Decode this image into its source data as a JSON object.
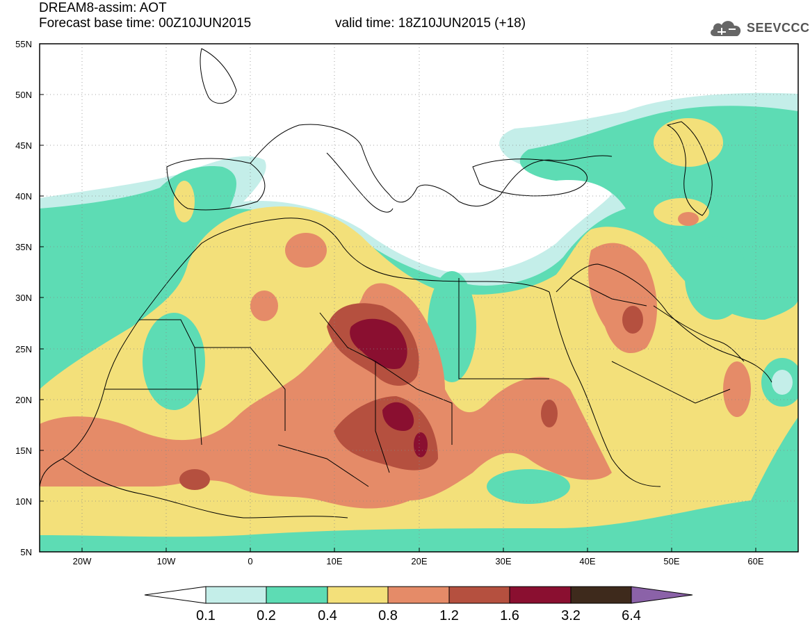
{
  "header": {
    "model_title": "DREAM8-assim: AOT",
    "base_time": "Forecast base time: 00Z10JUN2015",
    "valid_time": "valid time: 18Z10JUN2015 (+18)"
  },
  "logo": {
    "text": "SEEVCCC",
    "icon": "cloud-icon"
  },
  "map": {
    "lat_labels": [
      "55N",
      "50N",
      "45N",
      "40N",
      "35N",
      "30N",
      "25N",
      "20N",
      "15N",
      "10N",
      "5N"
    ],
    "lon_labels": [
      "20W",
      "10W",
      "0",
      "10E",
      "20E",
      "30E",
      "40E",
      "50E",
      "60E"
    ],
    "lat_range": [
      5,
      55
    ],
    "lon_range": [
      -25,
      65
    ]
  },
  "colorbar": {
    "labels": [
      "0.1",
      "0.2",
      "0.4",
      "0.8",
      "1.2",
      "1.6",
      "3.2",
      "6.4"
    ],
    "colors": [
      "#ffffff",
      "#c4eee9",
      "#5ddcb4",
      "#f3e07a",
      "#e58b68",
      "#b5503f",
      "#8a0f30",
      "#3e2a1c",
      "#8b62a8"
    ]
  }
}
